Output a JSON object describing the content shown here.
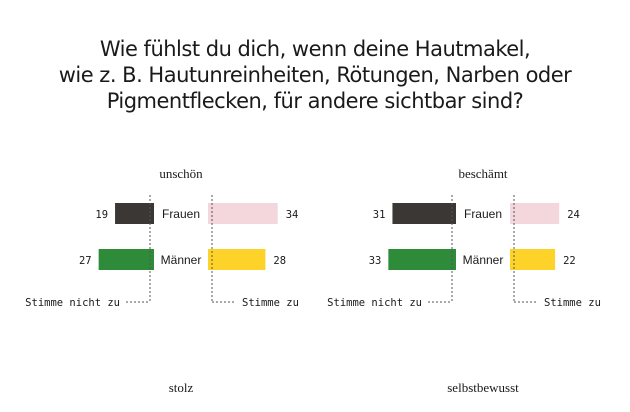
{
  "title_lines": [
    "Wie fühlst du dich, wenn deine Hautmakel,",
    "wie z. B. Hautunreinheiten, Rötungen, Narben oder",
    "Pigmentflecken, für andere sichtbar sind?"
  ],
  "colors": {
    "frauen_disagree": "#3b3735",
    "frauen_agree": "#f3d7dc",
    "maenner_disagree": "#2e8b3a",
    "maenner_agree": "#fdd32a"
  },
  "chart_data": [
    {
      "type": "bar",
      "title": "unschön",
      "categories": [
        "Frauen",
        "Männer"
      ],
      "series": [
        {
          "name": "Stimme nicht zu",
          "values": [
            19,
            27
          ]
        },
        {
          "name": "Stimme zu",
          "values": [
            34,
            28
          ]
        }
      ]
    },
    {
      "type": "bar",
      "title": "beschämt",
      "categories": [
        "Frauen",
        "Männer"
      ],
      "series": [
        {
          "name": "Stimme nicht zu",
          "values": [
            31,
            33
          ]
        },
        {
          "name": "Stimme zu",
          "values": [
            24,
            22
          ]
        }
      ]
    },
    {
      "type": "bar",
      "title": "stolz",
      "categories": [],
      "series": []
    },
    {
      "type": "bar",
      "title": "selbstbewusst",
      "categories": [],
      "series": []
    }
  ]
}
